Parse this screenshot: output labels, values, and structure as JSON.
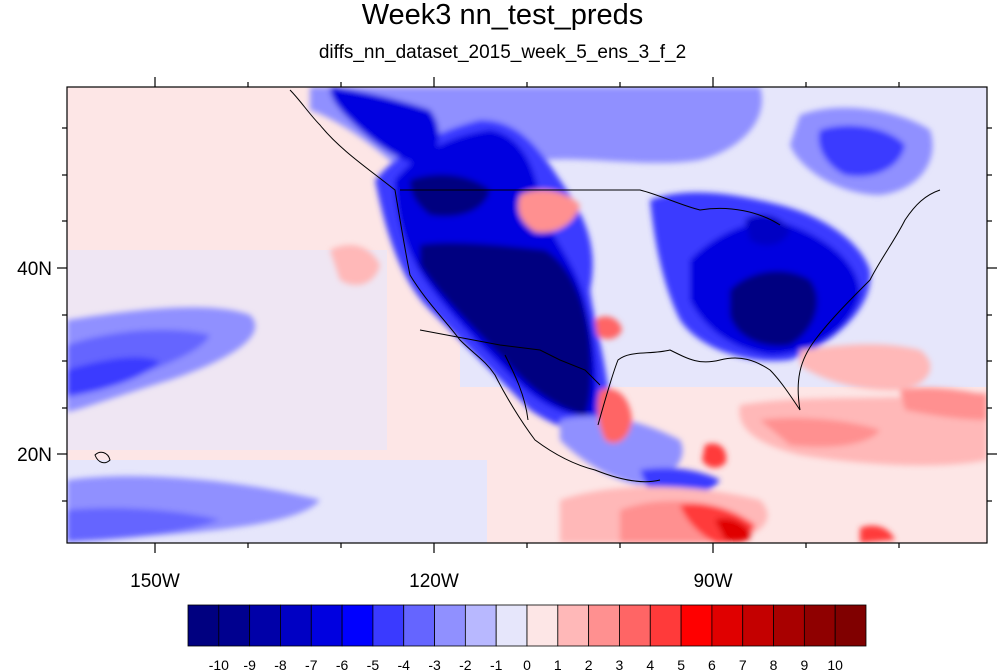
{
  "title": "Week3 nn_test_preds",
  "subtitle": "diffs_nn_dataset_2015_week_5_ens_3_f_2",
  "map": {
    "x_ticks": [
      "150W",
      "120W",
      "90W"
    ],
    "y_ticks": [
      "40N",
      "20N"
    ],
    "lon_range": [
      -159.5,
      -61.0
    ],
    "lat_range": [
      10.5,
      59.5
    ]
  },
  "colorbar": {
    "labels": [
      "-10",
      "-9",
      "-8",
      "-7",
      "-6",
      "-5",
      "-4",
      "-3",
      "-2",
      "-1",
      "0",
      "1",
      "2",
      "3",
      "4",
      "5",
      "6",
      "7",
      "8",
      "9",
      "10"
    ],
    "colors": [
      "#000080",
      "#00008f",
      "#0000a8",
      "#0000c4",
      "#0000e0",
      "#0000ff",
      "#3a3aff",
      "#6565ff",
      "#9090ff",
      "#b8b8ff",
      "#e6e6fb",
      "#fde6e6",
      "#ffb8b8",
      "#ff9090",
      "#ff6565",
      "#ff3a3a",
      "#ff0000",
      "#e00000",
      "#c40000",
      "#a80000",
      "#8f0000",
      "#800000"
    ]
  }
}
